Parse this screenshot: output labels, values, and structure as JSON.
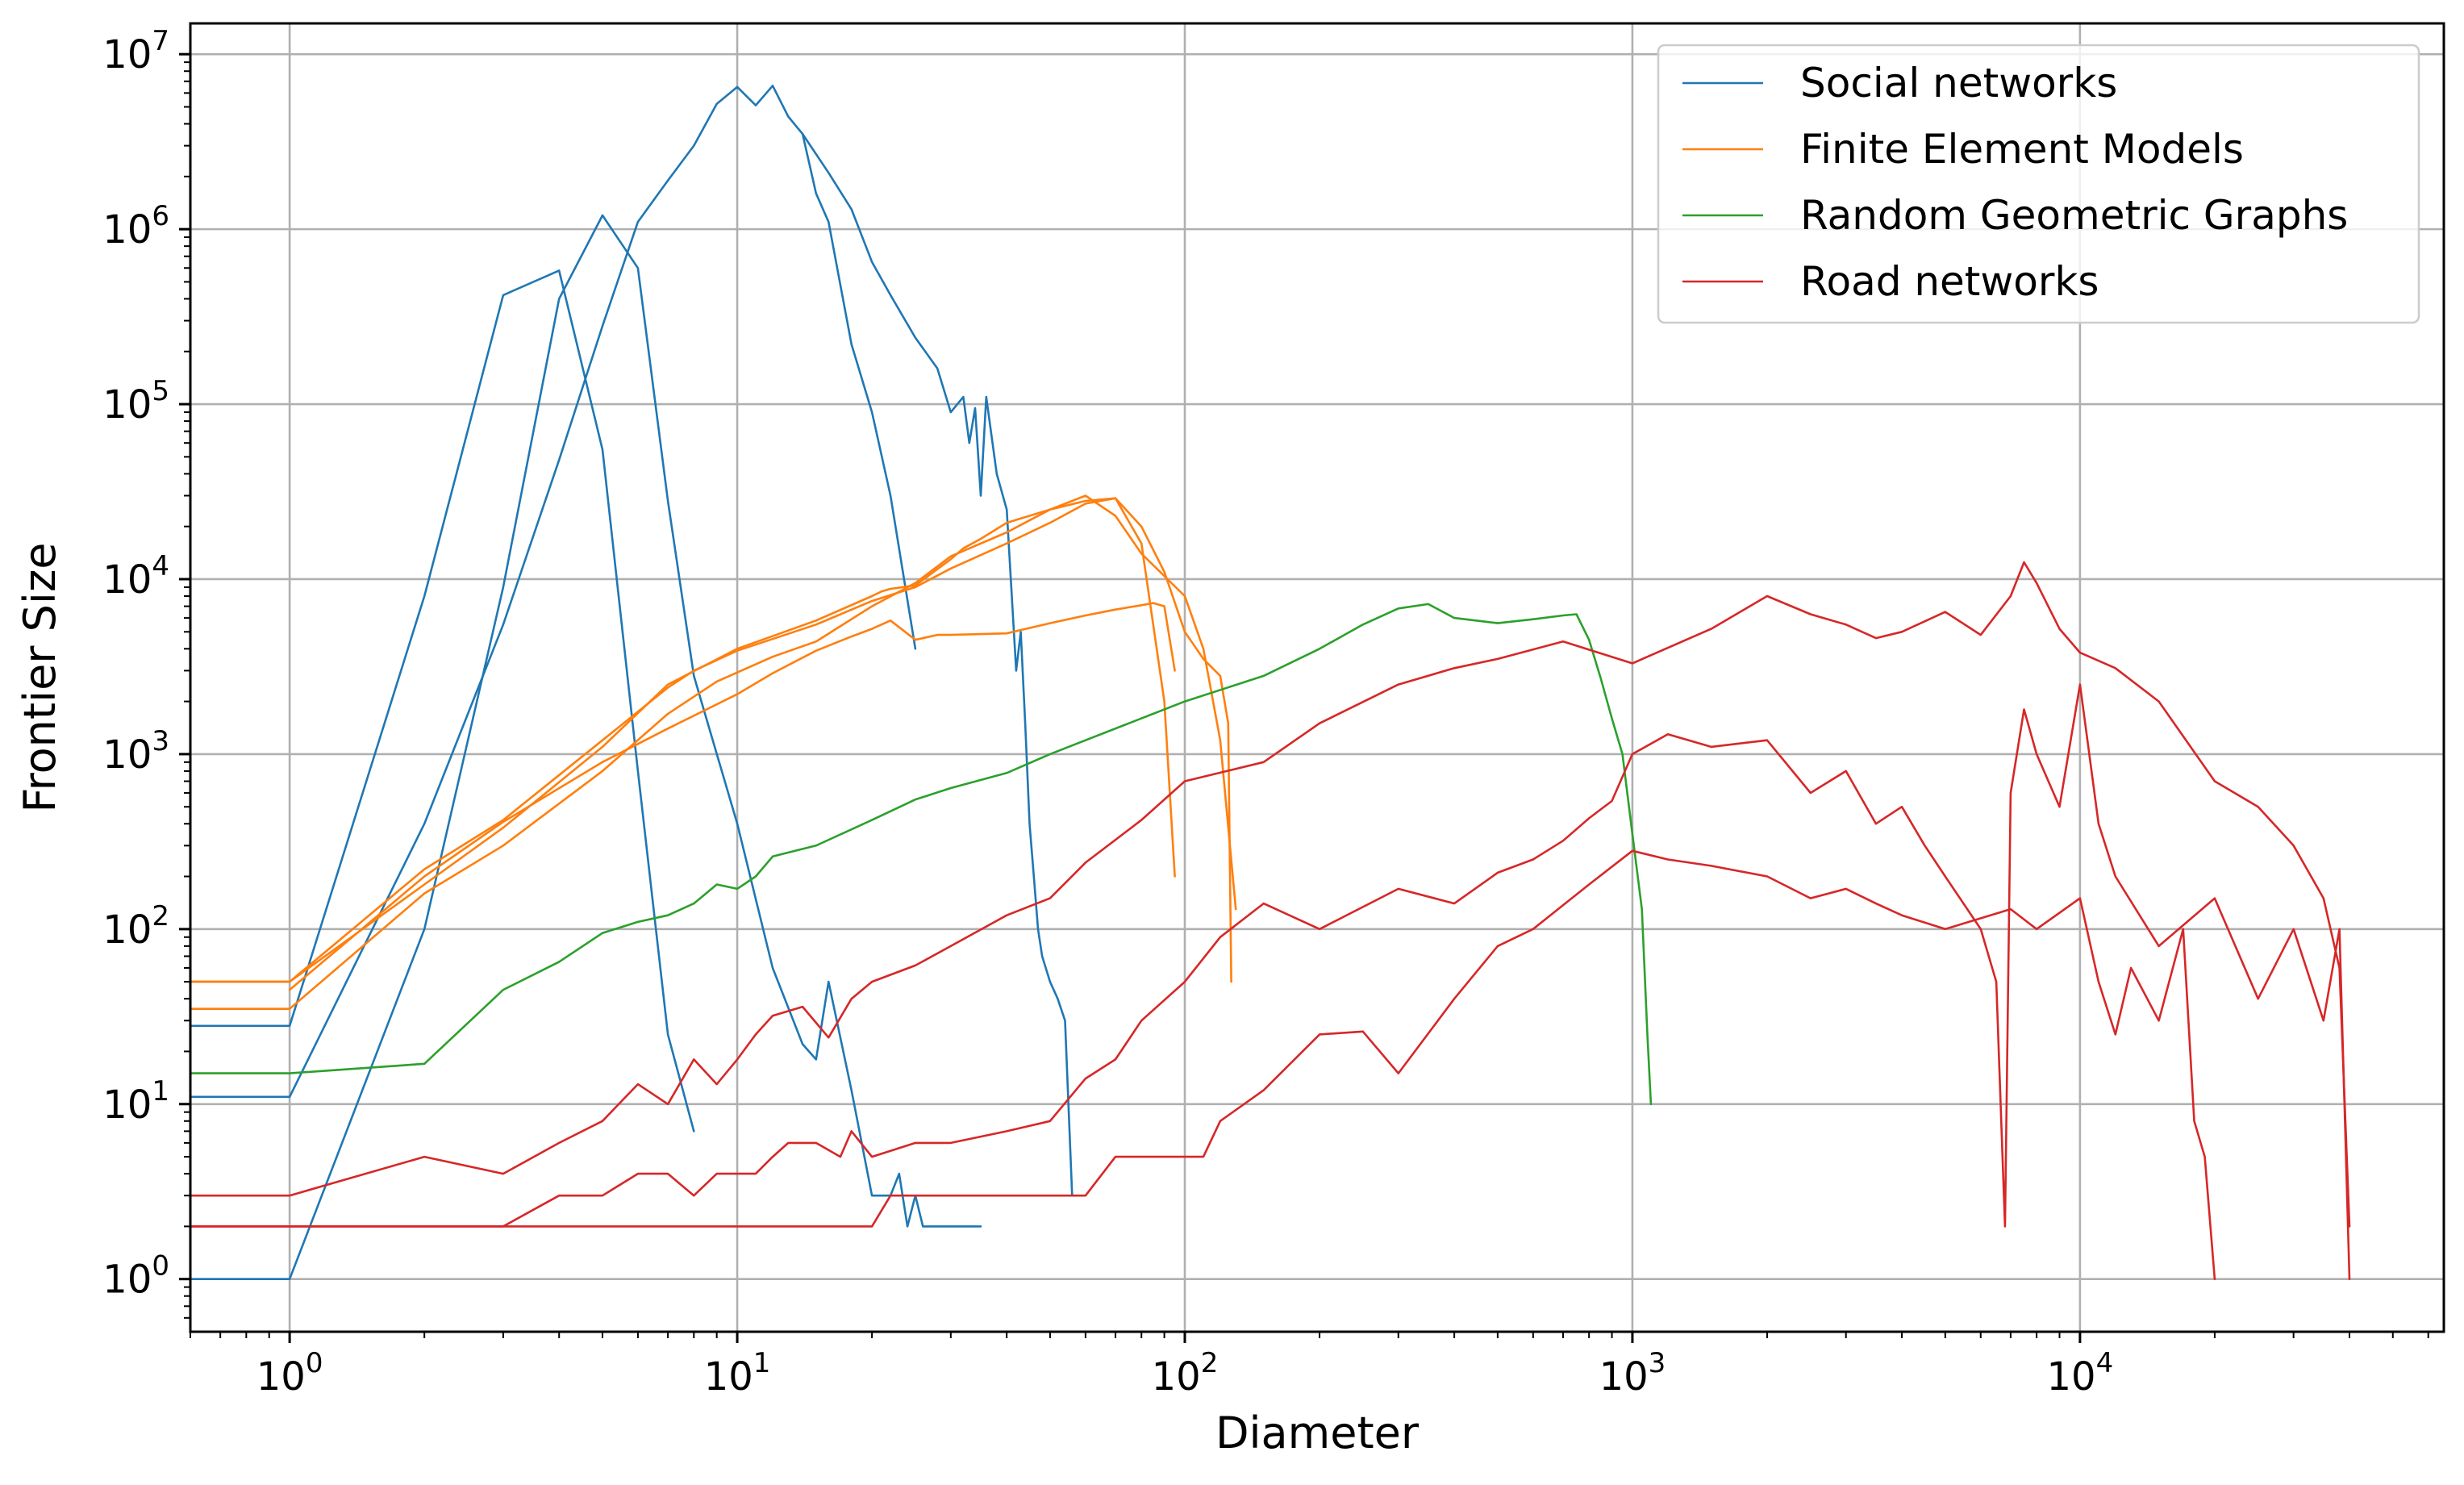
{
  "chart_data": {
    "type": "line",
    "title": "",
    "xlabel": "Diameter",
    "ylabel": "Frontier Size",
    "xscale": "log",
    "yscale": "log",
    "xlim": [
      0.6,
      65000
    ],
    "ylim": [
      0.5,
      15000000
    ],
    "grid": true,
    "legend_position": "top-right",
    "x_ticks": [
      {
        "base": "10",
        "exp": "0",
        "value": 1
      },
      {
        "base": "10",
        "exp": "1",
        "value": 10
      },
      {
        "base": "10",
        "exp": "2",
        "value": 100
      },
      {
        "base": "10",
        "exp": "3",
        "value": 1000
      },
      {
        "base": "10",
        "exp": "4",
        "value": 10000
      }
    ],
    "y_ticks": [
      {
        "base": "10",
        "exp": "0",
        "value": 1
      },
      {
        "base": "10",
        "exp": "1",
        "value": 10
      },
      {
        "base": "10",
        "exp": "2",
        "value": 100
      },
      {
        "base": "10",
        "exp": "3",
        "value": 1000
      },
      {
        "base": "10",
        "exp": "4",
        "value": 10000
      },
      {
        "base": "10",
        "exp": "5",
        "value": 100000
      },
      {
        "base": "10",
        "exp": "6",
        "value": 1000000
      },
      {
        "base": "10",
        "exp": "7",
        "value": 10000000
      }
    ],
    "series": [
      {
        "name": "Social networks",
        "color": "#1f77b4",
        "lines": [
          {
            "x": [
              0.6,
              1,
              2,
              3,
              4,
              5,
              6,
              7,
              8
            ],
            "y": [
              28,
              28,
              8000,
              420000,
              580000,
              55000,
              800,
              25,
              7
            ]
          },
          {
            "x": [
              0.6,
              1,
              2,
              3,
              4,
              5,
              6,
              7,
              8,
              9,
              10,
              11,
              12,
              13,
              14,
              15,
              16,
              18,
              20,
              22,
              25
            ],
            "y": [
              11,
              11,
              400,
              5500,
              48000,
              280000,
              1100000,
              1900000,
              3000000,
              5200000,
              6500000,
              5100000,
              6600000,
              4400000,
              3500000,
              1600000,
              1100000,
              220000,
              90000,
              30000,
              4000
            ]
          },
          {
            "x": [
              0.6,
              1,
              2,
              3,
              4,
              5,
              6,
              7,
              8,
              10,
              12,
              14,
              15,
              16,
              18,
              20,
              22,
              23,
              24,
              25,
              26,
              28,
              30,
              35
            ],
            "y": [
              1,
              1,
              100,
              9000,
              400000,
              1200000,
              600000,
              28000,
              2800,
              400,
              60,
              22,
              18,
              50,
              12,
              3,
              3,
              4,
              2,
              3,
              2,
              2,
              2,
              2
            ]
          },
          {
            "x": [
              14,
              16,
              18,
              20,
              22,
              25,
              28,
              30,
              32,
              33,
              34,
              35,
              36,
              38,
              40,
              42,
              43,
              44,
              45,
              46,
              47,
              48,
              50,
              52,
              54,
              56
            ],
            "y": [
              3500000,
              2100000,
              1300000,
              650000,
              420000,
              240000,
              160000,
              90000,
              110000,
              60000,
              95000,
              30000,
              110000,
              40000,
              25000,
              3000,
              5000,
              1500,
              400,
              200,
              100,
              70,
              50,
              40,
              30,
              3
            ]
          }
        ]
      },
      {
        "name": "Finite Element Models",
        "color": "#ff7f0e",
        "lines": [
          {
            "x": [
              0.6,
              1,
              2,
              3,
              5,
              7,
              8,
              10,
              15,
              20,
              25,
              30,
              40,
              50,
              60,
              70,
              80,
              90,
              95
            ],
            "y": [
              50,
              50,
              220,
              420,
              1200,
              2400,
              3000,
              3900,
              5500,
              7500,
              9000,
              11500,
              16000,
              21000,
              27000,
              29000,
              16000,
              2000,
              200
            ]
          },
          {
            "x": [
              0.6,
              1,
              2,
              3,
              5,
              7,
              9,
              12,
              15,
              20,
              25,
              30,
              40,
              50,
              60,
              70,
              80,
              100,
              110,
              120,
              130
            ],
            "y": [
              35,
              35,
              160,
              300,
              800,
              1700,
              2600,
              3600,
              4400,
              7000,
              9500,
              13500,
              18500,
              25000,
              30000,
              23000,
              14000,
              8000,
              4000,
              1200,
              130
            ]
          },
          {
            "x": [
              0.6,
              1,
              2,
              3,
              5,
              7,
              10,
              15,
              20,
              21,
              22,
              25,
              30,
              32,
              35,
              40,
              50,
              60,
              70,
              80,
              90,
              100,
              110,
              120,
              125,
              127
            ],
            "y": [
              50,
              50,
              180,
              380,
              1100,
              2500,
              4000,
              5800,
              8000,
              8500,
              8800,
              9200,
              13000,
              15000,
              17000,
              21000,
              25000,
              28000,
              29000,
              20000,
              11000,
              5000,
              3500,
              2800,
              1500,
              50
            ]
          },
          {
            "x": [
              1,
              2,
              3,
              5,
              7,
              10,
              12,
              15,
              18,
              20,
              22,
              25,
              28,
              30,
              40,
              50,
              60,
              70,
              80,
              85,
              90,
              95
            ],
            "y": [
              45,
              200,
              410,
              900,
              1400,
              2200,
              2900,
              3900,
              4700,
              5200,
              5800,
              4500,
              4800,
              4800,
              4900,
              5600,
              6200,
              6700,
              7100,
              7300,
              7000,
              3000
            ]
          }
        ]
      },
      {
        "name": "Random Geometric Graphs",
        "color": "#2ca02c",
        "lines": [
          {
            "x": [
              0.6,
              1,
              2,
              3,
              4,
              5,
              6,
              7,
              8,
              9,
              10,
              11,
              12,
              15,
              20,
              25,
              30,
              40,
              50,
              60,
              80,
              100,
              150,
              200,
              250,
              300,
              350,
              400,
              500,
              600,
              700,
              750,
              800,
              850,
              900,
              950,
              1000,
              1050,
              1080,
              1100
            ],
            "y": [
              15,
              15,
              17,
              45,
              65,
              95,
              110,
              120,
              140,
              180,
              170,
              200,
              260,
              300,
              420,
              550,
              640,
              780,
              1000,
              1200,
              1600,
              2000,
              2800,
              4000,
              5500,
              6800,
              7200,
              6000,
              5600,
              5900,
              6200,
              6300,
              4500,
              2700,
              1600,
              1000,
              350,
              130,
              25,
              10
            ]
          }
        ]
      },
      {
        "name": "Road networks",
        "color": "#d62728",
        "lines": [
          {
            "x": [
              0.6,
              1,
              2,
              3,
              4,
              5,
              6,
              7,
              8,
              9,
              10,
              11,
              12,
              14,
              16,
              18,
              20,
              25,
              30,
              40,
              50,
              60,
              80,
              100,
              150,
              200,
              300,
              400,
              500,
              700,
              1000,
              1500,
              2000,
              2500,
              3000,
              3500,
              4000,
              5000,
              6000,
              7000,
              7500,
              8000,
              9000,
              10000,
              12000,
              15000,
              20000,
              25000,
              30000,
              35000,
              38000,
              40000
            ],
            "y": [
              3,
              3,
              5,
              4,
              6,
              8,
              13,
              10,
              18,
              13,
              18,
              25,
              32,
              36,
              24,
              40,
              50,
              62,
              80,
              120,
              150,
              240,
              420,
              700,
              900,
              1500,
              2500,
              3100,
              3500,
              4400,
              3300,
              5200,
              8000,
              6300,
              5500,
              4600,
              5000,
              6500,
              4800,
              8000,
              12500,
              9500,
              5200,
              3800,
              3100,
              2000,
              700,
              500,
              300,
              150,
              60,
              2
            ]
          },
          {
            "x": [
              0.6,
              1,
              2,
              3,
              4,
              5,
              6,
              7,
              8,
              9,
              10,
              11,
              12,
              13,
              15,
              17,
              18,
              20,
              25,
              30,
              40,
              50,
              60,
              70,
              80,
              100,
              120,
              150,
              200,
              300,
              400,
              500,
              600,
              700,
              800,
              900,
              1000,
              1200,
              1500,
              2000,
              2500,
              3000,
              3500,
              4000,
              4500,
              5000,
              6000,
              6500,
              6800,
              7000,
              7500,
              8000,
              9000,
              10000,
              11000,
              12000,
              15000,
              20000,
              25000,
              30000,
              35000,
              38000,
              40000
            ],
            "y": [
              2,
              2,
              2,
              2,
              3,
              3,
              4,
              4,
              3,
              4,
              4,
              4,
              5,
              6,
              6,
              5,
              7,
              5,
              6,
              6,
              7,
              8,
              14,
              18,
              30,
              50,
              90,
              140,
              100,
              170,
              140,
              210,
              250,
              320,
              430,
              540,
              1000,
              1300,
              1100,
              1200,
              600,
              800,
              400,
              500,
              300,
              200,
              100,
              50,
              2,
              600,
              1800,
              1000,
              500,
              2500,
              400,
              200,
              80,
              150,
              40,
              100,
              30,
              100,
              1
            ]
          },
          {
            "x": [
              0.6,
              1,
              2,
              3,
              4,
              5,
              10,
              20,
              22,
              25,
              30,
              35,
              40,
              50,
              60,
              70,
              80,
              90,
              100,
              110,
              120,
              150,
              200,
              250,
              300,
              400,
              500,
              600,
              800,
              1000,
              1200,
              1500,
              2000,
              2500,
              3000,
              3500,
              4000,
              5000,
              7000,
              8000,
              10000,
              11000,
              12000,
              13000,
              15000,
              17000,
              18000,
              19000,
              20000
            ],
            "y": [
              2,
              2,
              2,
              2,
              2,
              2,
              2,
              2,
              3,
              3,
              3,
              3,
              3,
              3,
              3,
              5,
              5,
              5,
              5,
              5,
              8,
              12,
              25,
              26,
              15,
              40,
              80,
              100,
              180,
              280,
              250,
              230,
              200,
              150,
              170,
              140,
              120,
              100,
              130,
              100,
              150,
              50,
              25,
              60,
              30,
              100,
              8,
              5,
              1
            ]
          }
        ]
      }
    ]
  }
}
